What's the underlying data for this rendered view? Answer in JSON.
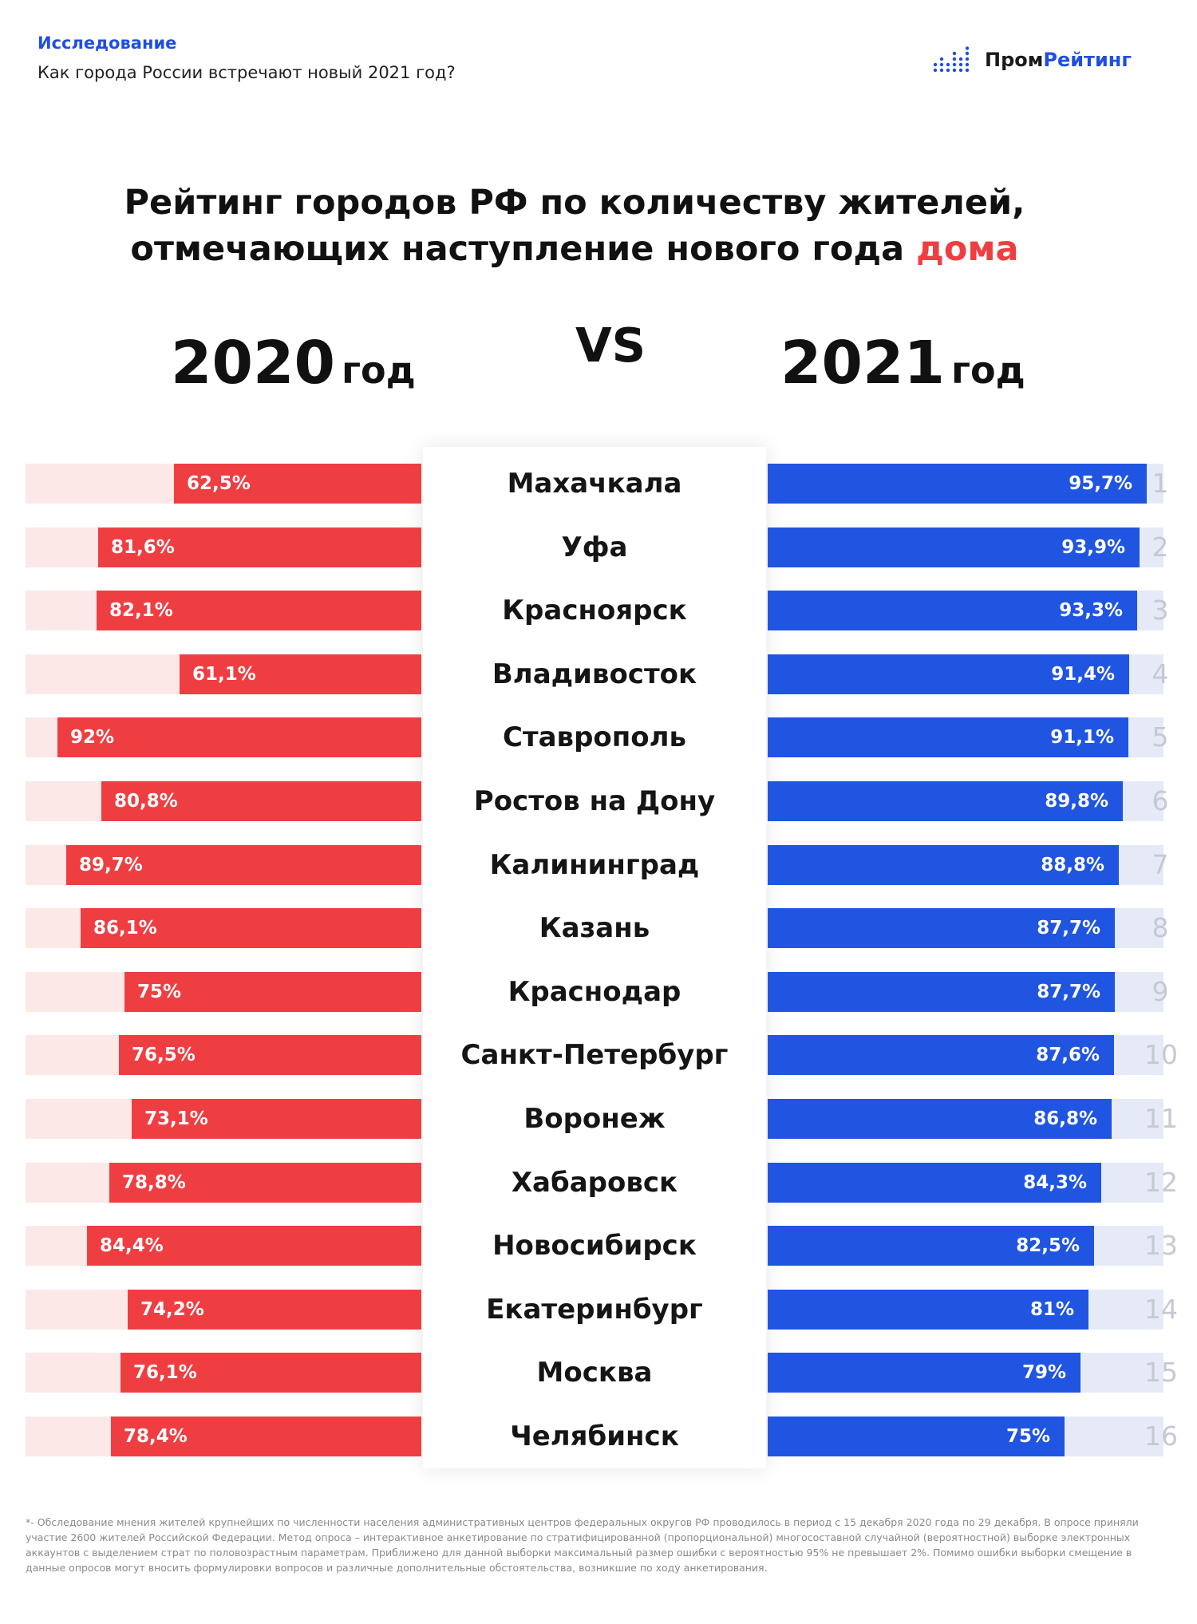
{
  "header": {
    "kicker": "Исследование",
    "subtitle": "Как города России встречают новый 2021 год?",
    "logo_part1": "Пром",
    "logo_part2": "Рейтинг"
  },
  "title": {
    "line1": "Рейтинг городов РФ по количеству жителей,",
    "line2_prefix": "отмечающих наступление нового года ",
    "line2_accent": "дома"
  },
  "years": {
    "left_num": "2020",
    "left_unit": "год",
    "vs": "VS",
    "right_num": "2021",
    "right_unit": "год"
  },
  "colors": {
    "red": "#ef3e42",
    "red_bg": "#fde8e8",
    "blue": "#1f55e0",
    "blue_bg": "#e6eaf7",
    "accent_text": "#1f4fe0"
  },
  "chart_data": {
    "type": "bar",
    "categories": [
      "Махачкала",
      "Уфа",
      "Красноярск",
      "Владивосток",
      "Ставрополь",
      "Ростов на Дону",
      "Калининград",
      "Казань",
      "Краснодар",
      "Санкт-Петербург",
      "Воронеж",
      "Хабаровск",
      "Новосибирск",
      "Екатеринбург",
      "Москва",
      "Челябинск"
    ],
    "ranks": [
      "1",
      "2",
      "3",
      "4",
      "5",
      "6",
      "7",
      "8",
      "9",
      "10",
      "11",
      "12",
      "13",
      "14",
      "15",
      "16"
    ],
    "series": [
      {
        "name": "2020 год",
        "values": [
          62.5,
          81.6,
          82.1,
          61.1,
          92,
          80.8,
          89.7,
          86.1,
          75,
          76.5,
          73.1,
          78.8,
          84.4,
          74.2,
          76.1,
          78.4
        ],
        "labels": [
          "62,5%",
          "81,6%",
          "82,1%",
          "61,1%",
          "92%",
          "80,8%",
          "89,7%",
          "86,1%",
          "75%",
          "76,5%",
          "73,1%",
          "78,8%",
          "84,4%",
          "74,2%",
          "76,1%",
          "78,4%"
        ]
      },
      {
        "name": "2021 год",
        "values": [
          95.7,
          93.9,
          93.3,
          91.4,
          91.1,
          89.8,
          88.8,
          87.7,
          87.7,
          87.6,
          86.8,
          84.3,
          82.5,
          81,
          79,
          75
        ],
        "labels": [
          "95,7%",
          "93,9%",
          "93,3%",
          "91,4%",
          "91,1%",
          "89,8%",
          "88,8%",
          "87,7%",
          "87,7%",
          "87,6%",
          "86,8%",
          "84,3%",
          "82,5%",
          "81%",
          "79%",
          "75%"
        ]
      }
    ],
    "ylim": [
      0,
      100
    ]
  },
  "footnote": "*- Обследование мнения жителей крупнейших по численности населения административных центров федеральных округов РФ проводилось в период с 15 декабря 2020 года по 29 декабря. В опросе приняли участие 2600 жителей Российской Федерации. Метод опроса – интерактивное анкетирование по стратифицированной (пропорциональной) многосоставной случайной (вероятностной) выборке электронных аккаунтов с выделением страт по половозрастным параметрам. Приближено для данной выборки максимальный размер ошибки с вероятностью 95% не превышает 2%. Помимо ошибки выборки смещение в данные опросов могут вносить формулировки вопросов и различные дополнительные обстоятельства, возникшие по ходу анкетирования."
}
